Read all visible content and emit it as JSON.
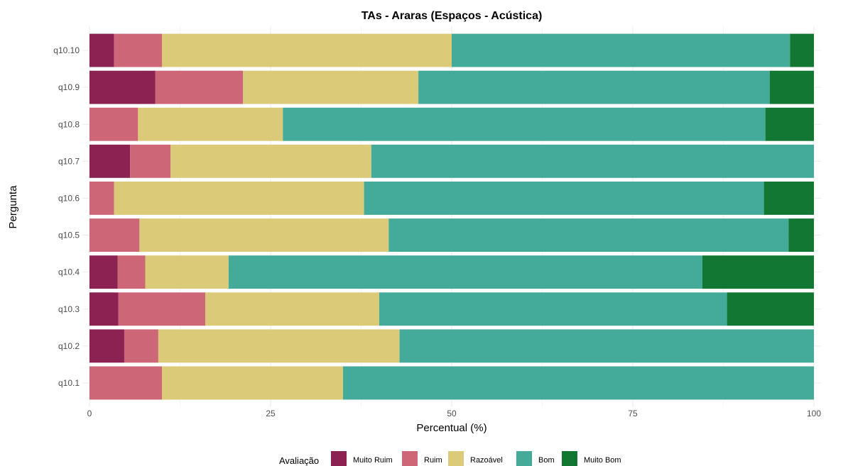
{
  "chart_data": {
    "type": "bar",
    "orientation": "horizontal",
    "stacked": true,
    "title": "TAs - Araras (Espaços - Acústica)",
    "xlabel": "Percentual (%)",
    "ylabel": "Pergunta",
    "xlim": [
      0,
      100
    ],
    "xticks": [
      0,
      25,
      50,
      75,
      100
    ],
    "grid": true,
    "legend_position": "bottom",
    "legend_title": "Avaliação",
    "categories": [
      "q10.1",
      "q10.2",
      "q10.3",
      "q10.4",
      "q10.5",
      "q10.6",
      "q10.7",
      "q10.8",
      "q10.9",
      "q10.10"
    ],
    "series": [
      {
        "name": "Muito Ruim",
        "color": "#8b2252",
        "values": [
          0,
          4.8,
          4.0,
          3.9,
          0,
          0,
          5.6,
          0,
          9.1,
          3.4
        ]
      },
      {
        "name": "Ruim",
        "color": "#cd6677",
        "values": [
          10.0,
          4.7,
          12.0,
          3.8,
          6.9,
          3.4,
          5.6,
          6.7,
          12.1,
          6.6
        ]
      },
      {
        "name": "Razoável",
        "color": "#dbcb79",
        "values": [
          25.0,
          33.3,
          24.0,
          11.5,
          34.4,
          34.5,
          27.7,
          20.0,
          24.2,
          40.0
        ]
      },
      {
        "name": "Bom",
        "color": "#44aa99",
        "values": [
          65.0,
          57.2,
          48.0,
          65.4,
          55.2,
          55.2,
          61.1,
          66.6,
          48.5,
          46.7
        ]
      },
      {
        "name": "Muito Bom",
        "color": "#117733",
        "values": [
          0,
          0,
          12.0,
          15.4,
          3.5,
          6.9,
          0,
          6.7,
          6.1,
          3.3
        ]
      }
    ]
  }
}
